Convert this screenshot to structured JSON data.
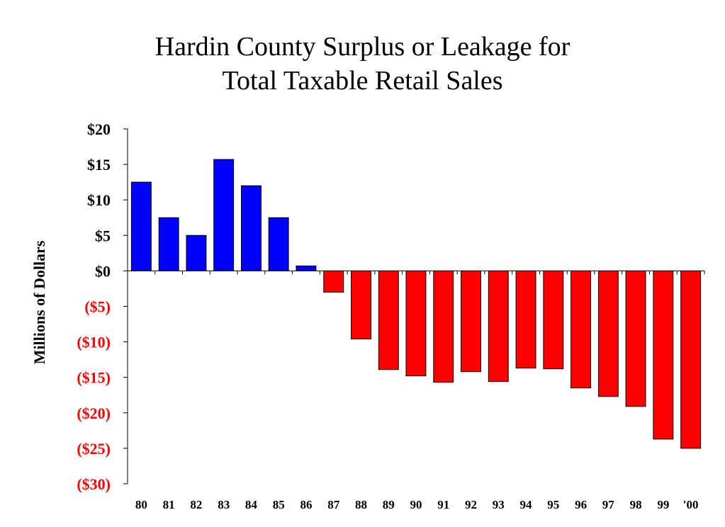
{
  "chart_data": {
    "type": "bar",
    "title_lines": [
      "Hardin County Surplus or Leakage for",
      "Total Taxable Retail Sales"
    ],
    "ylabel": "Millions of Dollars",
    "xlabel": "",
    "categories": [
      "80",
      "81",
      "82",
      "83",
      "84",
      "85",
      "86",
      "87",
      "88",
      "89",
      "90",
      "91",
      "92",
      "93",
      "94",
      "95",
      "96",
      "97",
      "98",
      "99",
      "'00"
    ],
    "values": [
      12.5,
      7.5,
      5.0,
      15.7,
      12.0,
      7.5,
      0.7,
      -3.0,
      -9.6,
      -13.9,
      -14.8,
      -15.7,
      -14.2,
      -15.6,
      -13.7,
      -13.8,
      -16.5,
      -17.7,
      -19.1,
      -23.7,
      -25.0
    ],
    "ylim": [
      -30,
      20
    ],
    "yticks": [
      20,
      15,
      10,
      5,
      0,
      -5,
      -10,
      -15,
      -20,
      -25,
      -30
    ],
    "ytick_labels": [
      "$20",
      "$15",
      "$10",
      "$5",
      "$0",
      "($5)",
      "($10)",
      "($15)",
      "($20)",
      "($25)",
      "($30)"
    ],
    "positive_color": "#0000ff",
    "negative_color": "#ff0000",
    "positive_label_color": "#000000",
    "negative_label_color": "#ff0000",
    "grid": false,
    "legend": "none"
  }
}
